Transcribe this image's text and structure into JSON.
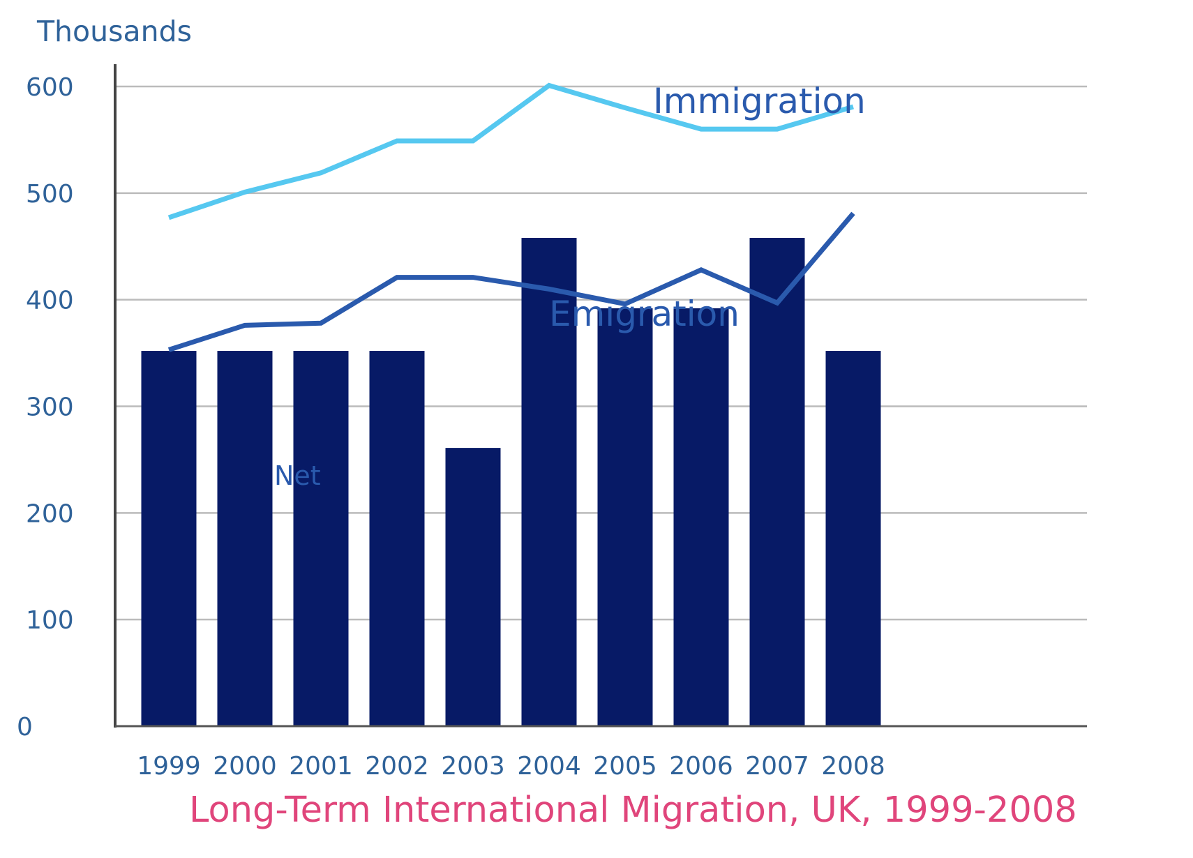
{
  "chart_data": {
    "type": "bar",
    "title": "Long-Term International Migration, UK, 1999-2008",
    "ylabel": "Thousands",
    "xlabel": "",
    "ylim": [
      0,
      600
    ],
    "yticks": [
      "0",
      "100",
      "200",
      "300",
      "400",
      "500",
      "600"
    ],
    "categories": [
      "1999",
      "2000",
      "2001",
      "2002",
      "2003",
      "2004",
      "2005",
      "2006",
      "2007",
      "2008"
    ],
    "grid": true,
    "series": [
      {
        "name": "Net",
        "kind": "bar",
        "color": "#071a66",
        "values": [
          352,
          352,
          352,
          352,
          261,
          458,
          392,
          392,
          458,
          352
        ]
      },
      {
        "name": "Emigration",
        "kind": "line",
        "color": "#2a5aad",
        "values": [
          353,
          376,
          378,
          421,
          421,
          410,
          396,
          428,
          397,
          481
        ]
      },
      {
        "name": "Immigration",
        "kind": "line",
        "color": "#56c8f0",
        "values": [
          477,
          501,
          519,
          549,
          549,
          601,
          580,
          560,
          560,
          581
        ]
      }
    ]
  }
}
